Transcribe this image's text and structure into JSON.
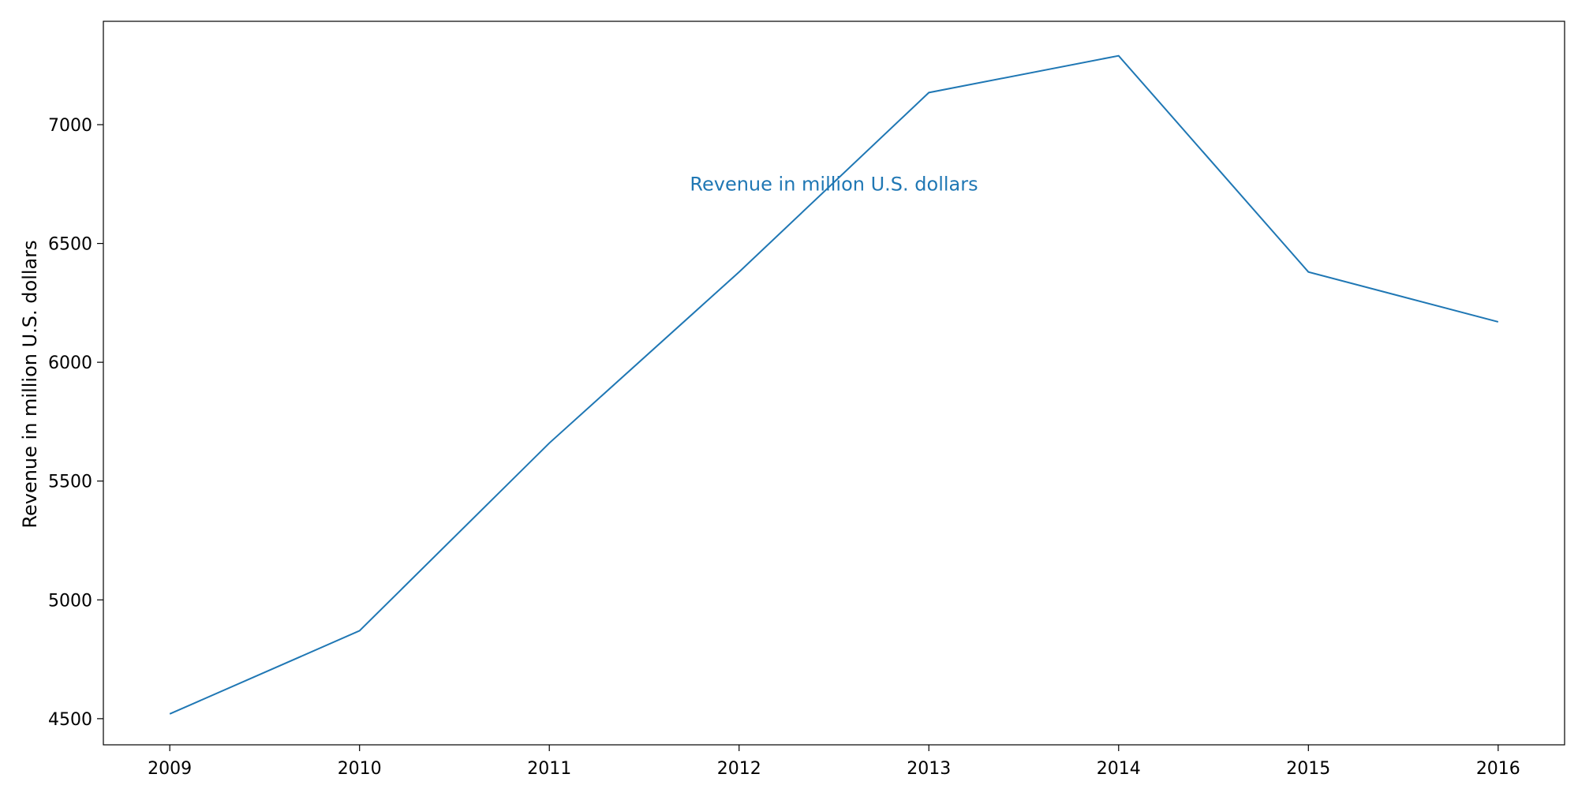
{
  "chart_data": {
    "type": "line",
    "title": "",
    "xlabel": "",
    "ylabel": "Revenue in million U.S. dollars",
    "x": [
      2009,
      2010,
      2011,
      2012,
      2013,
      2014,
      2015,
      2016
    ],
    "series": [
      {
        "values": [
          4520,
          4870,
          5660,
          6380,
          7135,
          7290,
          6380,
          6170
        ],
        "color": "#1f77b4"
      }
    ],
    "xlim": [
      2008.65,
      2016.35
    ],
    "ylim": [
      4390,
      7435
    ],
    "yticks": [
      4500,
      5000,
      5500,
      6000,
      6500,
      7000
    ],
    "xticks": [
      2009,
      2010,
      2011,
      2012,
      2013,
      2014,
      2015,
      2016
    ],
    "annotation": {
      "text": "Revenue in million U.S. dollars",
      "x": 2012.5,
      "y": 6750,
      "color": "#1f77b4"
    },
    "grid": false,
    "legend": "none"
  }
}
